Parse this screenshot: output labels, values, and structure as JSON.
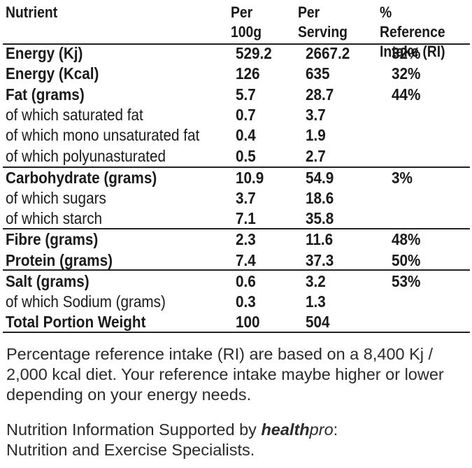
{
  "header": {
    "nutrient": "Nutrient",
    "per100g_l1": "Per",
    "per100g_l2": "100g",
    "perServing_l1": "Per",
    "perServing_l2": "Serving",
    "ri_l1": "% Reference",
    "ri_l2": "Intake (RI)"
  },
  "rows": [
    {
      "name": "Energy (Kj)",
      "per100g": "529.2",
      "perServing": "2667.2",
      "ri": "32%"
    },
    {
      "name": "Energy (Kcal)",
      "per100g": "126",
      "perServing": "635",
      "ri": "32%"
    },
    {
      "name": "Fat (grams)",
      "per100g": "5.7",
      "perServing": "28.7",
      "ri": "44%"
    },
    {
      "name": "of which saturated fat",
      "per100g": "0.7",
      "perServing": "3.7",
      "ri": ""
    },
    {
      "name": "of which mono unsaturated fat",
      "per100g": "0.4",
      "perServing": "1.9",
      "ri": ""
    },
    {
      "name": "of which polyunasturated",
      "per100g": "0.5",
      "perServing": "2.7",
      "ri": ""
    },
    {
      "name": "Carbohydrate (grams)",
      "per100g": "10.9",
      "perServing": "54.9",
      "ri": "3%"
    },
    {
      "name": "of which sugars",
      "per100g": "3.7",
      "perServing": "18.6",
      "ri": ""
    },
    {
      "name": "of which starch",
      "per100g": "7.1",
      "perServing": "35.8",
      "ri": ""
    },
    {
      "name": "Fibre (grams)",
      "per100g": "2.3",
      "perServing": "11.6",
      "ri": "48%"
    },
    {
      "name": "Protein (grams)",
      "per100g": "7.4",
      "perServing": "37.3",
      "ri": "50%"
    },
    {
      "name": "Salt (grams)",
      "per100g": "0.6",
      "perServing": "3.2",
      "ri": "53%"
    },
    {
      "name": "of which Sodium (grams)",
      "per100g": "0.3",
      "perServing": "1.3",
      "ri": ""
    },
    {
      "name": "Total Portion Weight",
      "per100g": "100",
      "perServing": "504",
      "ri": ""
    }
  ],
  "footer": {
    "ri_note": "Percentage reference intake (RI) are based on a 8,400 Kj / 2,000 kcal diet. Your reference intake maybe higher or lower depending on your energy needs.",
    "support_prefix": "Nutrition Information Supported by ",
    "brand_bold": "health",
    "brand_italic": "pro",
    "support_suffix": ":",
    "support_line2": "Nutrition and Exercise Specialists."
  }
}
